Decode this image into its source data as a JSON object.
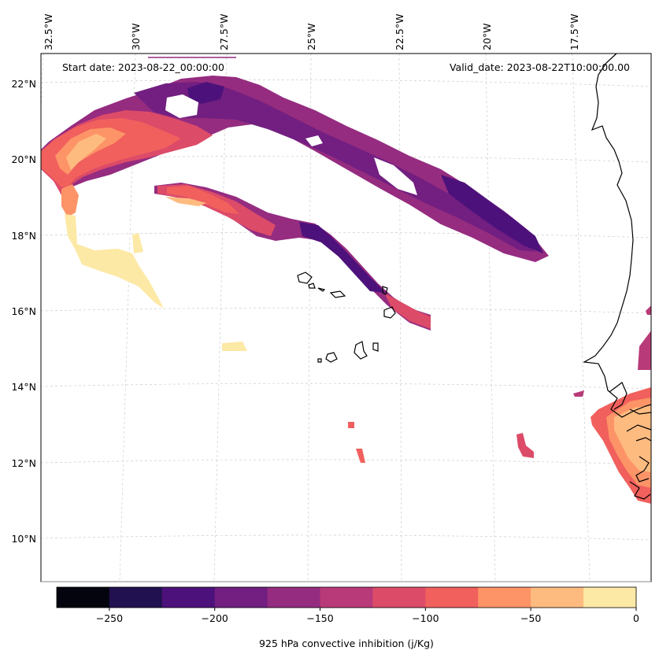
{
  "map": {
    "start_date": "Start date: 2023-08-22_00:00:00",
    "valid_date": "Valid_date: 2023-08-22T10:00:00.00",
    "lon_labels": [
      "32.5°W",
      "30°W",
      "27.5°W",
      "25°W",
      "22.5°W",
      "20°W",
      "17.5°W"
    ],
    "lat_labels": [
      "22°N",
      "20°N",
      "18°N",
      "16°N",
      "14°N",
      "12°N",
      "10°N"
    ]
  },
  "colorbar": {
    "label": "925 hPa convective inhibition (j/Kg)",
    "tick_labels": [
      "−250",
      "−200",
      "−150",
      "−100",
      "−50",
      "0"
    ],
    "tick_values": [
      -250,
      -200,
      -150,
      -100,
      -50,
      0
    ],
    "levels": [
      -275,
      -250,
      -225,
      -200,
      -175,
      -150,
      -125,
      -100,
      -75,
      -50,
      -25,
      0
    ],
    "colors": [
      "#04040f",
      "#221150",
      "#4d117b",
      "#721f81",
      "#952c80",
      "#b93a78",
      "#dc4b68",
      "#f1605d",
      "#fd9467",
      "#febb80",
      "#fde9a6"
    ]
  },
  "colors": {
    "coastline": "#000000",
    "gridline": "#cccccc",
    "background": "#ffffff"
  }
}
